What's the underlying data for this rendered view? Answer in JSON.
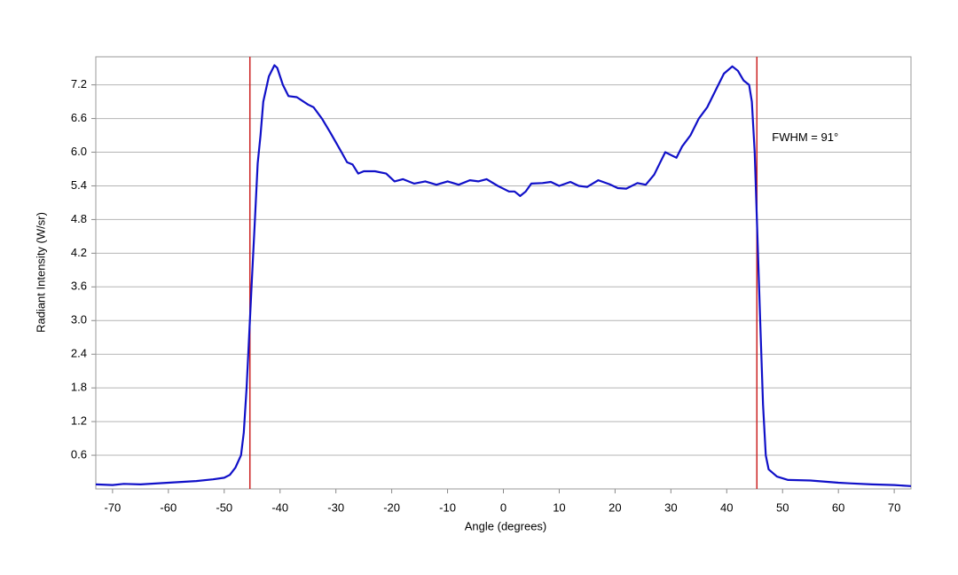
{
  "chart_data": {
    "type": "line",
    "x_label": "Angle (degrees)",
    "y_label": "Radiant Intensity (W/sr)",
    "annotation": "FWHM = 91°",
    "vlines": [
      -45.4,
      45.4
    ],
    "vline_color": "#cc2222",
    "color": "#1010c8",
    "grid": true,
    "x": [
      -73,
      -70,
      -68,
      -65,
      -60,
      -55,
      -52,
      -50,
      -49,
      -48,
      -47,
      -46.5,
      -46,
      -45.5,
      -45,
      -44.5,
      -44,
      -43.5,
      -43,
      -42,
      -41,
      -40.5,
      -39.5,
      -38.5,
      -37,
      -35,
      -34,
      -32.5,
      -31,
      -29,
      -28,
      -27,
      -26,
      -25,
      -23,
      -21,
      -19.5,
      -18,
      -16,
      -14,
      -12,
      -10,
      -8,
      -6,
      -4.5,
      -3,
      -1,
      1,
      2,
      3,
      4,
      5,
      7,
      8.5,
      10,
      12,
      13.5,
      15,
      17,
      19,
      20.5,
      22,
      24,
      25.5,
      27,
      28,
      29,
      30,
      31,
      32,
      33.5,
      35,
      36.5,
      38,
      39.5,
      41,
      42,
      43,
      44,
      44.5,
      45,
      45.5,
      46,
      46.5,
      47,
      47.5,
      49,
      51,
      55,
      60,
      62,
      66,
      70,
      73
    ],
    "values": [
      0.08,
      0.07,
      0.09,
      0.08,
      0.11,
      0.14,
      0.17,
      0.2,
      0.25,
      0.38,
      0.6,
      1.0,
      1.8,
      2.8,
      3.8,
      4.8,
      5.8,
      6.3,
      6.9,
      7.35,
      7.55,
      7.5,
      7.2,
      7.0,
      6.98,
      6.85,
      6.8,
      6.6,
      6.35,
      6.0,
      5.82,
      5.78,
      5.62,
      5.66,
      5.66,
      5.62,
      5.48,
      5.52,
      5.44,
      5.48,
      5.42,
      5.48,
      5.42,
      5.5,
      5.48,
      5.52,
      5.4,
      5.3,
      5.3,
      5.22,
      5.3,
      5.44,
      5.45,
      5.47,
      5.4,
      5.47,
      5.4,
      5.38,
      5.5,
      5.43,
      5.36,
      5.35,
      5.45,
      5.42,
      5.6,
      5.8,
      6.0,
      5.95,
      5.9,
      6.1,
      6.3,
      6.6,
      6.8,
      7.1,
      7.4,
      7.53,
      7.45,
      7.28,
      7.2,
      6.9,
      6.0,
      4.5,
      3.0,
      1.5,
      0.6,
      0.35,
      0.22,
      0.16,
      0.15,
      0.11,
      0.1,
      0.08,
      0.07,
      0.05
    ],
    "xlim": [
      -73,
      73
    ],
    "xticks": [
      -70,
      -60,
      -50,
      -40,
      -30,
      -20,
      -10,
      0,
      10,
      20,
      30,
      40,
      50,
      60,
      70
    ],
    "ylim": [
      0,
      7.7
    ],
    "yticks": [
      0.6,
      1.2,
      1.8,
      2.4,
      {
        "value": 3,
        "label": "3.0"
      },
      3.6,
      4.2,
      4.8,
      5.4,
      {
        "value": 6,
        "label": "6.0"
      },
      6.6,
      7.2
    ]
  }
}
